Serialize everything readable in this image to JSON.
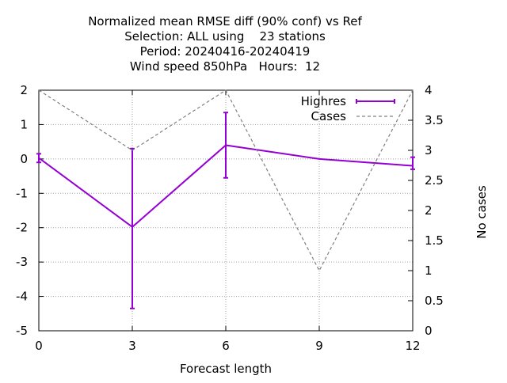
{
  "chart_data": {
    "type": "line",
    "title_lines": [
      "Normalized mean RMSE diff (90% conf) vs Ref",
      "Selection: ALL using    23 stations",
      "Period: 20240416-20240419",
      "Wind speed 850hPa   Hours:  12"
    ],
    "xlabel": "Forecast length",
    "y2label": "No cases",
    "xlim": [
      0,
      12
    ],
    "ylim": [
      -5,
      2
    ],
    "y2lim": [
      0,
      4
    ],
    "xticks": [
      "0",
      "3",
      "6",
      "9",
      "12"
    ],
    "yticks": [
      "2",
      "1",
      "0",
      "-1",
      "-2",
      "-3",
      "-4",
      "-5"
    ],
    "y2ticks": [
      "4",
      "3.5",
      "3",
      "2.5",
      "2",
      "1.5",
      "1",
      "0.5",
      "0"
    ],
    "grid": true,
    "legend_position": "top-right",
    "series": [
      {
        "name": "Highres",
        "color": "#9400d3",
        "style": "solid-errorbars",
        "axis": "y",
        "x": [
          0,
          3,
          6,
          9,
          12
        ],
        "y": [
          0.03,
          -1.98,
          0.4,
          0.0,
          -0.2
        ],
        "err_low": [
          -0.1,
          -4.35,
          -0.55,
          0.0,
          -0.3
        ],
        "err_high": [
          0.15,
          0.3,
          1.35,
          0.0,
          0.05
        ]
      },
      {
        "name": "Cases",
        "color": "#808080",
        "style": "dashed",
        "axis": "y2",
        "x": [
          0,
          3,
          6,
          9,
          12
        ],
        "y": [
          4,
          3,
          4,
          1,
          4
        ]
      }
    ]
  }
}
